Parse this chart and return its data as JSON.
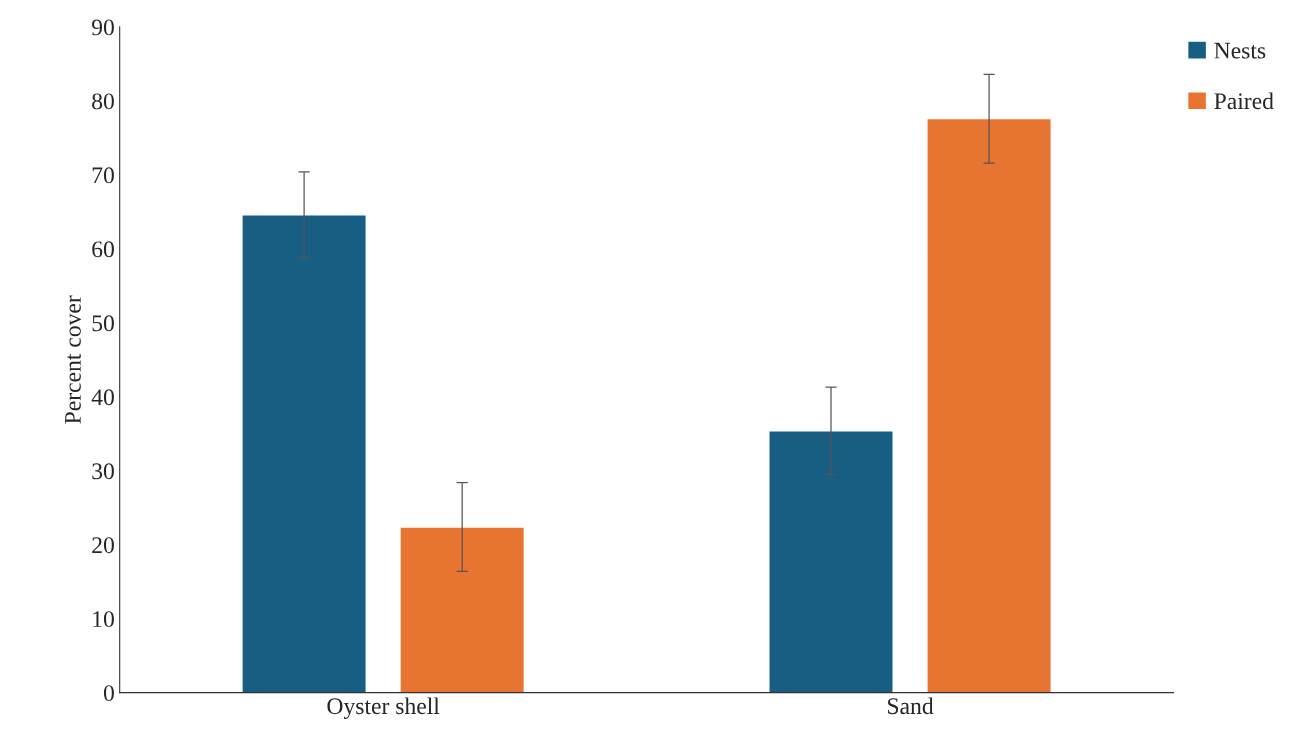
{
  "chart_data": {
    "type": "bar",
    "ylabel": "Percent cover",
    "categories": [
      "Oyster shell",
      "Sand"
    ],
    "series": [
      {
        "name": "Nests",
        "color": "#175e82",
        "values": [
          64.6,
          35.4
        ],
        "errors": [
          5.8,
          5.9
        ]
      },
      {
        "name": "Paired",
        "color": "#e87432",
        "values": [
          22.4,
          77.6
        ],
        "errors": [
          6,
          6
        ]
      }
    ],
    "ylim": [
      0,
      90
    ],
    "yticks": [
      0,
      10,
      20,
      30,
      40,
      50,
      60,
      70,
      80,
      90
    ],
    "grid": false,
    "legend": "top right"
  }
}
